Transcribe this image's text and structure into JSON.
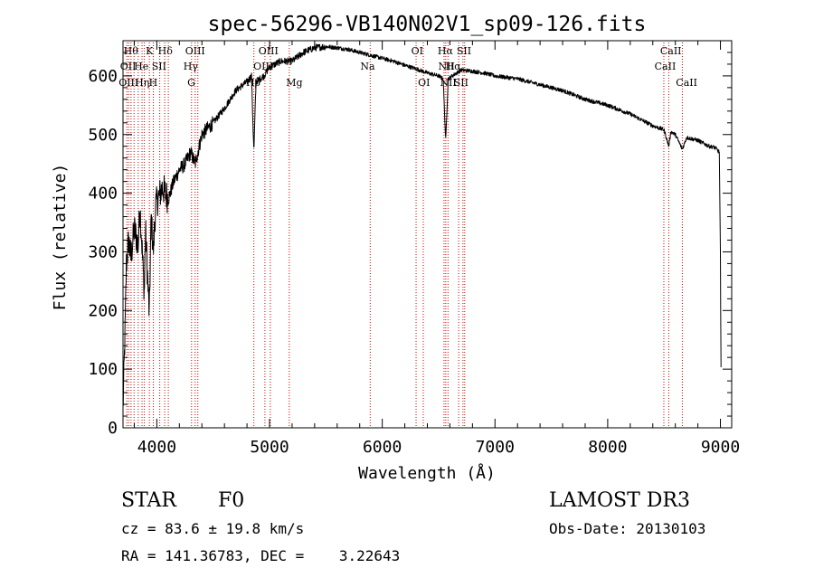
{
  "chart_data": {
    "type": "line",
    "title": "spec-56296-VB140N02V1_sp09-126.fits",
    "xlabel": "Wavelength (Å)",
    "ylabel": "Flux (relative)",
    "xlim": [
      3700,
      9100
    ],
    "ylim": [
      0,
      660
    ],
    "x_ticks": [
      4000,
      5000,
      6000,
      7000,
      8000,
      9000
    ],
    "y_ticks": [
      0,
      100,
      200,
      300,
      400,
      500,
      600
    ],
    "x_tick_labels": [
      "4000",
      "5000",
      "6000",
      "7000",
      "8000",
      "9000"
    ],
    "y_tick_labels": [
      "0",
      "100",
      "200",
      "300",
      "400",
      "500",
      "600"
    ],
    "series": [
      {
        "name": "spectrum",
        "color": "#000000",
        "x": [
          3700,
          3720,
          3730,
          3750,
          3770,
          3800,
          3835,
          3850,
          3889,
          3900,
          3933,
          3950,
          3968,
          3990,
          4050,
          4102,
          4150,
          4200,
          4250,
          4300,
          4340,
          4400,
          4500,
          4600,
          4700,
          4800,
          4840,
          4861,
          4880,
          4950,
          5000,
          5100,
          5200,
          5300,
          5400,
          5500,
          5600,
          5700,
          5800,
          5900,
          6000,
          6100,
          6200,
          6300,
          6400,
          6500,
          6540,
          6563,
          6585,
          6620,
          6700,
          6800,
          6900,
          7000,
          7200,
          7400,
          7600,
          7800,
          8000,
          8200,
          8400,
          8500,
          8542,
          8560,
          8600,
          8662,
          8700,
          8800,
          8900,
          8950,
          8990,
          9000,
          9005
        ],
        "y": [
          30,
          180,
          280,
          320,
          290,
          340,
          310,
          380,
          230,
          340,
          190,
          360,
          300,
          380,
          410,
          390,
          420,
          440,
          450,
          470,
          450,
          500,
          520,
          545,
          575,
          590,
          600,
          470,
          590,
          600,
          615,
          625,
          625,
          640,
          648,
          650,
          648,
          645,
          640,
          635,
          630,
          625,
          618,
          612,
          605,
          600,
          595,
          490,
          595,
          600,
          610,
          608,
          605,
          600,
          595,
          585,
          575,
          560,
          550,
          535,
          515,
          508,
          480,
          505,
          500,
          475,
          495,
          490,
          480,
          478,
          470,
          300,
          100
        ]
      }
    ],
    "lines": {
      "color": "#cc0000",
      "wavelengths": [
        3734,
        3750,
        3771,
        3798,
        3835,
        3869,
        3889,
        3934,
        3969,
        4026,
        4070,
        4102,
        4308,
        4340,
        4364,
        4861,
        4959,
        5007,
        5175,
        5893,
        6300,
        6364,
        6548,
        6563,
        6583,
        6678,
        6716,
        6731,
        8498,
        8542,
        8662
      ]
    },
    "line_labels": [
      {
        "text": "Hθ",
        "wl": 3770,
        "row": 1
      },
      {
        "text": "K",
        "wl": 3935,
        "row": 1
      },
      {
        "text": "Hδ",
        "wl": 4075,
        "row": 1
      },
      {
        "text": "OIII",
        "wl": 4340,
        "row": 1
      },
      {
        "text": "OIII",
        "wl": 4990,
        "row": 1
      },
      {
        "text": "OI",
        "wl": 6310,
        "row": 1
      },
      {
        "text": "Hα",
        "wl": 6560,
        "row": 1
      },
      {
        "text": "SII",
        "wl": 6725,
        "row": 1
      },
      {
        "text": "CaII",
        "wl": 8560,
        "row": 1
      },
      {
        "text": "OII",
        "wl": 3745,
        "row": 2
      },
      {
        "text": "He",
        "wl": 3862,
        "row": 2
      },
      {
        "text": "SII",
        "wl": 4020,
        "row": 2
      },
      {
        "text": "Hγ",
        "wl": 4300,
        "row": 2
      },
      {
        "text": "OIII",
        "wl": 4945,
        "row": 2
      },
      {
        "text": "Na",
        "wl": 5870,
        "row": 2
      },
      {
        "text": "NII",
        "wl": 6570,
        "row": 2
      },
      {
        "text": "Hα",
        "wl": 6630,
        "row": 2
      },
      {
        "text": "CaII",
        "wl": 8510,
        "row": 2
      },
      {
        "text": "OIII",
        "wl": 3750,
        "row": 3
      },
      {
        "text": "Hη",
        "wl": 3870,
        "row": 3
      },
      {
        "text": "H",
        "wl": 3968,
        "row": 3
      },
      {
        "text": "G",
        "wl": 4306,
        "row": 3
      },
      {
        "text": "Hβ",
        "wl": 4855,
        "row": 3
      },
      {
        "text": "Mg",
        "wl": 5220,
        "row": 3
      },
      {
        "text": "OI",
        "wl": 6370,
        "row": 3
      },
      {
        "text": "NII",
        "wl": 6585,
        "row": 3
      },
      {
        "text": "SII",
        "wl": 6700,
        "row": 3
      },
      {
        "text": "CaII",
        "wl": 8700,
        "row": 3
      }
    ]
  },
  "info": {
    "class_label": "STAR",
    "subclass": "F0",
    "survey": "LAMOST DR3",
    "cz": "cz = 83.6 ± 19.8 km/s",
    "obs_date": "Obs-Date: 20130103",
    "coords": "RA = 141.36783, DEC =    3.22643"
  }
}
